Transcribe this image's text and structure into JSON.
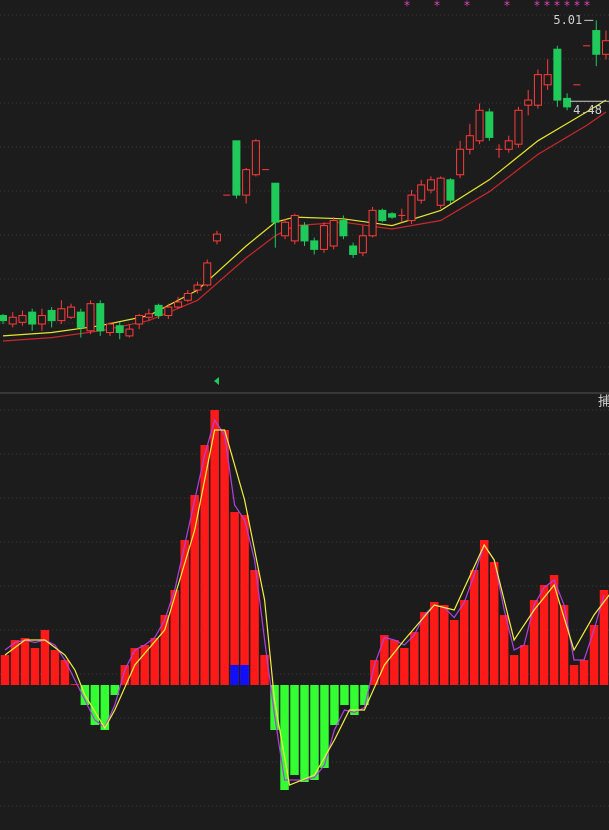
{
  "chart_data": [
    {
      "type": "candlestick",
      "ylim": [
        2.89,
        5.13
      ],
      "grid": true,
      "up_color": "#ff3b3b",
      "down_color": "#1fc95a",
      "open": [
        3.27,
        3.22,
        3.23,
        3.29,
        3.22,
        3.3,
        3.24,
        3.26,
        3.29,
        3.18,
        3.34,
        3.17,
        3.21,
        3.15,
        3.22,
        3.26,
        3.33,
        3.27,
        3.32,
        3.36,
        3.42,
        3.45,
        3.71,
        3.98,
        4.3,
        3.98,
        4.1,
        4.13,
        4.05,
        3.74,
        3.71,
        3.8,
        3.71,
        3.66,
        3.68,
        3.83,
        3.68,
        3.64,
        3.74,
        3.89,
        3.87,
        3.86,
        3.83,
        3.95,
        4.01,
        3.92,
        4.07,
        4.1,
        4.25,
        4.3,
        4.47,
        4.25,
        4.25,
        4.28,
        4.51,
        4.51,
        4.63,
        4.84,
        4.55,
        4.63,
        4.86,
        4.95,
        4.81
      ],
      "close": [
        3.24,
        3.26,
        3.27,
        3.22,
        3.27,
        3.24,
        3.31,
        3.32,
        3.2,
        3.34,
        3.18,
        3.22,
        3.17,
        3.19,
        3.27,
        3.28,
        3.27,
        3.32,
        3.35,
        3.4,
        3.45,
        3.58,
        3.75,
        3.98,
        3.98,
        4.13,
        4.3,
        4.13,
        3.82,
        3.82,
        3.86,
        3.71,
        3.66,
        3.8,
        3.83,
        3.74,
        3.63,
        3.74,
        3.89,
        3.83,
        3.85,
        3.86,
        3.98,
        4.04,
        4.07,
        4.08,
        3.95,
        4.25,
        4.33,
        4.48,
        4.32,
        4.25,
        4.3,
        4.48,
        4.54,
        4.69,
        4.69,
        4.54,
        4.5,
        4.63,
        4.86,
        4.81,
        4.89
      ],
      "high": [
        3.28,
        3.29,
        3.3,
        3.31,
        3.31,
        3.32,
        3.36,
        3.34,
        3.31,
        3.36,
        3.36,
        3.23,
        3.23,
        3.22,
        3.28,
        3.31,
        3.34,
        3.34,
        3.38,
        3.42,
        3.47,
        3.6,
        3.77,
        3.98,
        4.3,
        4.14,
        4.31,
        4.13,
        4.05,
        3.84,
        3.87,
        3.82,
        3.73,
        3.82,
        3.85,
        3.86,
        3.7,
        3.8,
        3.91,
        3.9,
        3.88,
        3.9,
        4.01,
        4.07,
        4.09,
        4.09,
        4.08,
        4.3,
        4.4,
        4.52,
        4.49,
        4.28,
        4.33,
        4.5,
        4.6,
        4.72,
        4.78,
        4.86,
        4.58,
        4.63,
        4.86,
        5.01,
        4.95
      ],
      "low": [
        3.22,
        3.2,
        3.21,
        3.18,
        3.18,
        3.2,
        3.22,
        3.25,
        3.14,
        3.16,
        3.15,
        3.15,
        3.13,
        3.14,
        3.19,
        3.24,
        3.25,
        3.25,
        3.31,
        3.35,
        3.4,
        3.44,
        3.69,
        3.98,
        3.96,
        3.93,
        4.09,
        4.13,
        3.67,
        3.72,
        3.69,
        3.68,
        3.63,
        3.64,
        3.66,
        3.72,
        3.61,
        3.62,
        3.73,
        3.82,
        3.84,
        3.82,
        3.81,
        3.93,
        3.99,
        3.9,
        3.93,
        4.08,
        4.22,
        4.28,
        4.3,
        4.2,
        4.23,
        4.26,
        4.45,
        4.49,
        4.6,
        4.5,
        4.48,
        4.63,
        4.86,
        4.74,
        4.78
      ],
      "lines": [
        {
          "color": "#e6e62e",
          "x": [
            0,
            5,
            10,
            15,
            20,
            25,
            28,
            30,
            35,
            40,
            45,
            50,
            55,
            60,
            62
          ],
          "values": [
            3.15,
            3.17,
            3.21,
            3.27,
            3.42,
            3.68,
            3.82,
            3.85,
            3.84,
            3.8,
            3.89,
            4.07,
            4.3,
            4.47,
            4.54
          ]
        },
        {
          "color": "#c8282d",
          "x": [
            0,
            5,
            10,
            15,
            20,
            25,
            28,
            30,
            35,
            40,
            45,
            50,
            55,
            60,
            62
          ],
          "values": [
            3.12,
            3.14,
            3.18,
            3.24,
            3.36,
            3.61,
            3.74,
            3.8,
            3.82,
            3.78,
            3.83,
            4.0,
            4.22,
            4.39,
            4.47
          ]
        }
      ],
      "annotations": [
        {
          "label": "5.01",
          "value": 5.01,
          "index": 61
        },
        {
          "label": "4.48",
          "value": 4.48,
          "index": 58
        }
      ]
    },
    {
      "type": "bar",
      "ylim": [
        -2.9,
        5.8
      ],
      "grid": true,
      "indicator_label": "捕",
      "series": [
        {
          "color": "#ff1a1a",
          "neg_color": "#33ff33",
          "values": [
            0.6,
            0.9,
            0.94,
            0.74,
            1.1,
            0.7,
            0.5,
            0.02,
            -0.4,
            -0.8,
            -0.9,
            -0.2,
            0.4,
            0.74,
            0.8,
            0.94,
            1.4,
            1.9,
            2.9,
            3.8,
            4.8,
            5.5,
            5.1,
            3.46,
            3.4,
            2.3,
            0.6,
            -0.9,
            -2.1,
            -1.8,
            -1.94,
            -1.9,
            -1.66,
            -0.8,
            -0.4,
            -0.6,
            -0.4,
            0.5,
            1.0,
            0.9,
            0.74,
            1.06,
            1.46,
            1.66,
            1.6,
            1.3,
            1.7,
            2.3,
            2.9,
            2.46,
            1.4,
            0.6,
            0.8,
            1.7,
            2.0,
            2.2,
            1.6,
            0.4,
            0.5,
            1.2,
            1.9
          ]
        },
        {
          "color": "#1010ff",
          "values": [
            null,
            null,
            null,
            null,
            null,
            null,
            null,
            null,
            null,
            null,
            null,
            null,
            null,
            null,
            null,
            null,
            null,
            null,
            null,
            null,
            null,
            null,
            null,
            0.4,
            0.4,
            null,
            null,
            null,
            null,
            null,
            null,
            null,
            null,
            null,
            null,
            null,
            null,
            null,
            null,
            null,
            null,
            null,
            null,
            null,
            null,
            null,
            null,
            null,
            null,
            null,
            null,
            null,
            null,
            null,
            null,
            null,
            null,
            null,
            null,
            null,
            null
          ]
        }
      ],
      "lines": [
        {
          "color": "#b040e0",
          "x": [
            0,
            1,
            2,
            3,
            4,
            5,
            6,
            7,
            8,
            9,
            10,
            11,
            12,
            13,
            14,
            15,
            16,
            17,
            18,
            19,
            20,
            21,
            22,
            23,
            24,
            25,
            26,
            27,
            28,
            29,
            30,
            31,
            32,
            33,
            34,
            35,
            36,
            37,
            38,
            39,
            40,
            41,
            42,
            43,
            44,
            45,
            46,
            47,
            48,
            49,
            50,
            51,
            52,
            53,
            54,
            55,
            56,
            57,
            58,
            59,
            60
          ],
          "values": [
            0.7,
            0.85,
            0.9,
            0.85,
            0.9,
            0.8,
            0.5,
            0.1,
            -0.3,
            -0.7,
            -0.85,
            -0.4,
            0.3,
            0.7,
            0.8,
            0.95,
            1.3,
            1.9,
            2.8,
            3.7,
            4.6,
            5.3,
            5.0,
            3.6,
            3.3,
            2.5,
            0.9,
            -0.6,
            -1.9,
            -1.9,
            -1.9,
            -1.85,
            -1.6,
            -0.9,
            -0.5,
            -0.55,
            -0.45,
            0.4,
            0.95,
            0.9,
            0.8,
            1.0,
            1.4,
            1.6,
            1.55,
            1.35,
            1.65,
            2.2,
            2.8,
            2.5,
            1.5,
            0.7,
            0.8,
            1.6,
            1.95,
            2.1,
            1.6,
            0.5,
            0.5,
            1.1,
            1.8
          ]
        },
        {
          "color": "#f0f040",
          "x": [
            0,
            2,
            4,
            6,
            7,
            8,
            10,
            11,
            13,
            16,
            19,
            21,
            22,
            24,
            26,
            27,
            28.5,
            31,
            33,
            34.5,
            36,
            38,
            40,
            43,
            45,
            48,
            49,
            51,
            53,
            55,
            57,
            59,
            60.9
          ],
          "values": [
            0.6,
            0.9,
            0.9,
            0.6,
            0.3,
            -0.2,
            -0.86,
            -0.5,
            0.4,
            1.1,
            3.1,
            5.1,
            5.1,
            3.7,
            1.7,
            -0.3,
            -2.0,
            -1.8,
            -1.1,
            -0.5,
            -0.5,
            0.4,
            0.9,
            1.6,
            1.5,
            2.8,
            2.5,
            0.9,
            1.5,
            2.0,
            0.7,
            1.4,
            1.9
          ]
        }
      ]
    }
  ]
}
